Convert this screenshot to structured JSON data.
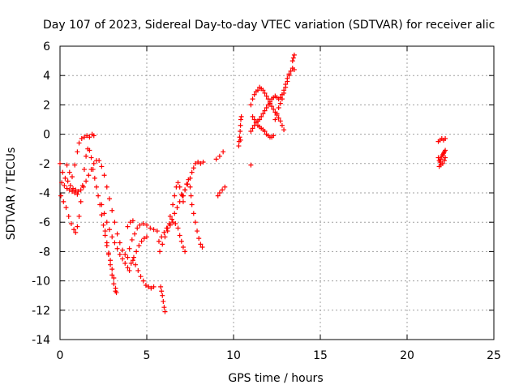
{
  "chart_data": {
    "type": "scatter",
    "title": "Day 107 of 2023, Sidereal Day-to-day VTEC variation (SDTVAR) for receiver alic",
    "xlabel": "GPS time / hours",
    "ylabel": "SDTVAR / TECUs",
    "xlim": [
      0,
      25
    ],
    "ylim": [
      -14,
      6
    ],
    "xticks": [
      "0",
      "5",
      "10",
      "15",
      "20",
      "25"
    ],
    "yticks": [
      "-14",
      "-12",
      "-10",
      "-8",
      "-6",
      "-4",
      "-2",
      "0",
      "2",
      "4",
      "6"
    ],
    "grid": true,
    "marker": "+",
    "color": "#ff0000",
    "series": [
      {
        "name": "",
        "points": [
          [
            0.0,
            -2.0
          ],
          [
            0.15,
            -2.6
          ],
          [
            0.3,
            -3.0
          ],
          [
            0.45,
            -3.2
          ],
          [
            0.6,
            -3.5
          ],
          [
            0.75,
            -3.7
          ],
          [
            0.9,
            -3.8
          ],
          [
            1.05,
            -3.9
          ],
          [
            1.2,
            -3.8
          ],
          [
            1.35,
            -3.6
          ],
          [
            1.5,
            -3.2
          ],
          [
            1.65,
            -2.8
          ],
          [
            1.8,
            -2.4
          ],
          [
            1.95,
            -2.0
          ],
          [
            2.1,
            -1.8
          ],
          [
            2.25,
            -1.8
          ],
          [
            2.4,
            -2.2
          ],
          [
            2.55,
            -2.8
          ],
          [
            2.7,
            -3.6
          ],
          [
            2.85,
            -4.4
          ],
          [
            3.0,
            -5.2
          ],
          [
            3.15,
            -6.0
          ],
          [
            3.3,
            -6.8
          ],
          [
            3.45,
            -7.4
          ],
          [
            3.6,
            -7.9
          ],
          [
            3.75,
            -8.2
          ],
          [
            3.9,
            -8.4
          ]
        ]
      },
      {
        "name": "",
        "points": [
          [
            0.05,
            -4.2
          ],
          [
            0.2,
            -4.6
          ],
          [
            0.35,
            -5.0
          ],
          [
            0.5,
            -5.6
          ],
          [
            0.65,
            -6.1
          ],
          [
            0.8,
            -6.5
          ],
          [
            0.9,
            -6.7
          ],
          [
            1.0,
            -6.3
          ],
          [
            1.1,
            -5.6
          ],
          [
            1.2,
            -4.6
          ],
          [
            1.3,
            -3.5
          ],
          [
            1.4,
            -2.4
          ],
          [
            1.5,
            -1.5
          ],
          [
            1.6,
            -1.0
          ],
          [
            1.7,
            -1.1
          ],
          [
            1.8,
            -1.6
          ],
          [
            1.9,
            -2.4
          ],
          [
            2.0,
            -3.0
          ],
          [
            2.1,
            -3.6
          ],
          [
            2.2,
            -4.2
          ],
          [
            2.3,
            -4.8
          ],
          [
            2.4,
            -5.5
          ],
          [
            2.5,
            -6.2
          ],
          [
            2.6,
            -6.9
          ],
          [
            2.7,
            -7.6
          ],
          [
            2.8,
            -8.1
          ],
          [
            2.9,
            -8.6
          ],
          [
            3.0,
            -9.2
          ],
          [
            3.1,
            -9.8
          ],
          [
            3.2,
            -10.5
          ],
          [
            3.25,
            -10.8
          ]
        ]
      },
      {
        "name": "",
        "points": [
          [
            0.4,
            -2.1
          ],
          [
            0.55,
            -2.6
          ],
          [
            0.7,
            -2.9
          ],
          [
            0.85,
            -2.1
          ],
          [
            1.0,
            -1.2
          ],
          [
            1.1,
            -0.6
          ],
          [
            1.25,
            -0.3
          ],
          [
            1.4,
            -0.2
          ],
          [
            1.55,
            -0.1
          ],
          [
            1.7,
            -0.2
          ],
          [
            1.85,
            0.0
          ],
          [
            1.95,
            -0.1
          ]
        ]
      },
      {
        "name": "",
        "points": [
          [
            0.1,
            -3.3
          ],
          [
            0.25,
            -3.5
          ],
          [
            0.4,
            -3.7
          ],
          [
            0.55,
            -3.8
          ],
          [
            0.7,
            -3.9
          ],
          [
            0.85,
            -4.0
          ],
          [
            1.0,
            -4.1
          ]
        ]
      },
      {
        "name": "",
        "points": [
          [
            2.4,
            -4.8
          ],
          [
            2.55,
            -5.4
          ],
          [
            2.7,
            -6.0
          ],
          [
            2.85,
            -6.5
          ],
          [
            3.0,
            -7.0
          ],
          [
            3.15,
            -7.4
          ],
          [
            3.3,
            -7.8
          ],
          [
            3.45,
            -8.2
          ],
          [
            3.6,
            -8.5
          ],
          [
            3.75,
            -8.8
          ],
          [
            3.9,
            -9.1
          ],
          [
            4.0,
            -9.3
          ]
        ]
      },
      {
        "name": "",
        "points": [
          [
            2.6,
            -6.6
          ],
          [
            2.7,
            -7.4
          ],
          [
            2.8,
            -8.2
          ],
          [
            2.9,
            -8.9
          ],
          [
            3.0,
            -9.6
          ],
          [
            3.1,
            -10.2
          ],
          [
            3.2,
            -10.7
          ]
        ]
      },
      {
        "name": "",
        "points": [
          [
            4.0,
            -7.8
          ],
          [
            4.15,
            -7.2
          ],
          [
            4.3,
            -6.8
          ],
          [
            4.45,
            -6.4
          ],
          [
            4.6,
            -6.2
          ],
          [
            4.8,
            -6.1
          ],
          [
            5.0,
            -6.2
          ],
          [
            5.2,
            -6.4
          ],
          [
            5.4,
            -6.5
          ],
          [
            5.6,
            -6.6
          ]
        ]
      },
      {
        "name": "",
        "points": [
          [
            3.9,
            -6.3
          ],
          [
            4.05,
            -6.0
          ],
          [
            4.2,
            -5.9
          ]
        ]
      },
      {
        "name": "",
        "points": [
          [
            4.2,
            -8.6
          ],
          [
            4.35,
            -8.9
          ],
          [
            4.5,
            -9.3
          ],
          [
            4.65,
            -9.7
          ],
          [
            4.8,
            -10.0
          ],
          [
            4.95,
            -10.3
          ],
          [
            5.1,
            -10.4
          ],
          [
            5.25,
            -10.5
          ],
          [
            5.4,
            -10.4
          ]
        ]
      },
      {
        "name": "",
        "points": [
          [
            4.1,
            -8.8
          ],
          [
            4.25,
            -8.4
          ],
          [
            4.4,
            -8.0
          ],
          [
            4.55,
            -7.6
          ],
          [
            4.7,
            -7.3
          ],
          [
            4.85,
            -7.1
          ],
          [
            5.0,
            -7.0
          ]
        ]
      },
      {
        "name": "",
        "points": [
          [
            5.8,
            -10.4
          ],
          [
            5.85,
            -10.7
          ],
          [
            5.9,
            -11.0
          ],
          [
            5.95,
            -11.4
          ],
          [
            6.0,
            -11.8
          ],
          [
            6.05,
            -12.1
          ]
        ]
      },
      {
        "name": "",
        "points": [
          [
            5.7,
            -7.3
          ],
          [
            5.85,
            -7.0
          ],
          [
            6.0,
            -6.7
          ],
          [
            6.15,
            -6.4
          ],
          [
            6.3,
            -6.1
          ],
          [
            6.45,
            -5.8
          ],
          [
            6.6,
            -5.4
          ],
          [
            6.75,
            -5.0
          ],
          [
            6.9,
            -4.6
          ],
          [
            7.05,
            -4.2
          ],
          [
            7.2,
            -3.8
          ],
          [
            7.35,
            -3.4
          ],
          [
            7.5,
            -3.0
          ],
          [
            7.6,
            -2.6
          ],
          [
            7.7,
            -2.3
          ],
          [
            7.8,
            -2.0
          ],
          [
            7.95,
            -1.9
          ],
          [
            8.1,
            -2.0
          ],
          [
            8.25,
            -1.9
          ]
        ]
      },
      {
        "name": "",
        "points": [
          [
            5.75,
            -8.0
          ],
          [
            5.9,
            -7.5
          ],
          [
            6.05,
            -7.0
          ],
          [
            6.2,
            -6.4
          ],
          [
            6.35,
            -5.6
          ],
          [
            6.5,
            -4.8
          ],
          [
            6.6,
            -4.2
          ],
          [
            6.7,
            -3.6
          ],
          [
            6.8,
            -3.3
          ],
          [
            6.9,
            -3.6
          ],
          [
            7.0,
            -4.1
          ],
          [
            7.1,
            -4.6
          ]
        ]
      },
      {
        "name": "",
        "points": [
          [
            6.2,
            -6.6
          ],
          [
            6.35,
            -6.2
          ],
          [
            6.5,
            -6.0
          ],
          [
            6.65,
            -6.1
          ],
          [
            6.8,
            -6.4
          ],
          [
            6.9,
            -6.9
          ],
          [
            7.0,
            -7.3
          ],
          [
            7.1,
            -7.7
          ],
          [
            7.2,
            -8.0
          ]
        ]
      },
      {
        "name": "",
        "points": [
          [
            7.1,
            -4.2
          ],
          [
            7.2,
            -3.8
          ],
          [
            7.3,
            -3.4
          ],
          [
            7.4,
            -3.1
          ],
          [
            7.5,
            -3.6
          ],
          [
            7.55,
            -4.2
          ],
          [
            7.6,
            -4.8
          ],
          [
            7.7,
            -5.4
          ],
          [
            7.8,
            -6.0
          ],
          [
            7.9,
            -6.6
          ],
          [
            8.0,
            -7.1
          ],
          [
            8.1,
            -7.5
          ],
          [
            8.2,
            -7.7
          ]
        ]
      },
      {
        "name": "",
        "points": [
          [
            9.0,
            -1.7
          ],
          [
            9.2,
            -1.5
          ],
          [
            9.4,
            -1.2
          ],
          [
            9.1,
            -4.2
          ],
          [
            9.2,
            -4.0
          ],
          [
            9.35,
            -3.8
          ],
          [
            9.5,
            -3.6
          ]
        ]
      },
      {
        "name": "",
        "points": [
          [
            10.3,
            -0.8
          ],
          [
            10.32,
            -0.5
          ],
          [
            10.35,
            -0.2
          ],
          [
            10.38,
            0.2
          ],
          [
            10.4,
            0.6
          ],
          [
            10.42,
            1.0
          ],
          [
            10.45,
            1.2
          ],
          [
            10.4,
            -0.4
          ]
        ]
      },
      {
        "name": "",
        "points": [
          [
            11.0,
            2.0
          ],
          [
            11.1,
            2.4
          ],
          [
            11.2,
            2.7
          ],
          [
            11.3,
            2.9
          ],
          [
            11.4,
            3.0
          ],
          [
            11.5,
            3.2
          ],
          [
            11.6,
            3.1
          ],
          [
            11.7,
            3.0
          ],
          [
            11.8,
            2.8
          ],
          [
            11.9,
            2.6
          ],
          [
            12.0,
            2.4
          ],
          [
            12.1,
            2.1
          ],
          [
            12.2,
            1.9
          ],
          [
            12.3,
            1.7
          ],
          [
            12.4,
            1.5
          ],
          [
            12.5,
            1.3
          ],
          [
            12.6,
            1.1
          ],
          [
            12.7,
            0.9
          ],
          [
            12.8,
            0.6
          ],
          [
            12.9,
            0.3
          ]
        ]
      },
      {
        "name": "",
        "points": [
          [
            11.0,
            0.2
          ],
          [
            11.1,
            0.4
          ],
          [
            11.2,
            0.6
          ],
          [
            11.3,
            0.8
          ],
          [
            11.4,
            0.9
          ],
          [
            11.5,
            1.0
          ],
          [
            11.6,
            1.2
          ],
          [
            11.7,
            1.4
          ],
          [
            11.8,
            1.6
          ],
          [
            11.9,
            1.8
          ],
          [
            12.0,
            2.0
          ],
          [
            12.1,
            2.2
          ],
          [
            12.2,
            2.4
          ],
          [
            12.3,
            2.5
          ],
          [
            12.4,
            2.6
          ],
          [
            12.5,
            2.5
          ],
          [
            12.6,
            2.4
          ],
          [
            12.7,
            2.5
          ],
          [
            12.8,
            2.7
          ],
          [
            12.9,
            3.0
          ],
          [
            13.0,
            3.4
          ],
          [
            13.1,
            3.8
          ],
          [
            13.2,
            4.1
          ]
        ]
      },
      {
        "name": "",
        "points": [
          [
            11.1,
            1.2
          ],
          [
            11.2,
            1.0
          ],
          [
            11.3,
            0.8
          ],
          [
            11.4,
            0.6
          ],
          [
            11.5,
            0.5
          ],
          [
            11.6,
            0.4
          ],
          [
            11.7,
            0.3
          ],
          [
            11.8,
            0.2
          ],
          [
            11.9,
            0.0
          ],
          [
            12.0,
            -0.1
          ],
          [
            12.1,
            -0.2
          ],
          [
            12.2,
            -0.2
          ],
          [
            12.3,
            -0.1
          ]
        ]
      },
      {
        "name": "",
        "points": [
          [
            12.4,
            1.0
          ],
          [
            12.5,
            1.4
          ],
          [
            12.6,
            1.8
          ],
          [
            12.7,
            2.1
          ],
          [
            12.8,
            2.4
          ],
          [
            12.9,
            2.8
          ],
          [
            13.0,
            3.2
          ],
          [
            13.1,
            3.6
          ],
          [
            13.2,
            4.0
          ],
          [
            13.3,
            4.3
          ]
        ]
      },
      {
        "name": "",
        "points": [
          [
            13.4,
            5.0
          ],
          [
            13.45,
            5.2
          ],
          [
            13.5,
            5.4
          ],
          [
            13.4,
            4.5
          ],
          [
            13.5,
            4.4
          ],
          [
            11.0,
            -2.1
          ]
        ]
      },
      {
        "name": "",
        "points": [
          [
            21.8,
            -0.5
          ],
          [
            21.9,
            -0.4
          ],
          [
            22.0,
            -0.3
          ],
          [
            22.1,
            -0.4
          ],
          [
            22.2,
            -0.3
          ],
          [
            21.8,
            -1.6
          ],
          [
            21.85,
            -1.8
          ],
          [
            21.9,
            -1.9
          ],
          [
            21.95,
            -1.7
          ],
          [
            22.0,
            -1.5
          ],
          [
            22.05,
            -1.4
          ],
          [
            22.1,
            -1.3
          ],
          [
            22.15,
            -1.2
          ],
          [
            22.2,
            -1.1
          ],
          [
            21.85,
            -2.2
          ],
          [
            21.95,
            -2.1
          ],
          [
            22.05,
            -2.0
          ],
          [
            22.15,
            -1.8
          ],
          [
            22.2,
            -1.6
          ]
        ]
      }
    ]
  }
}
